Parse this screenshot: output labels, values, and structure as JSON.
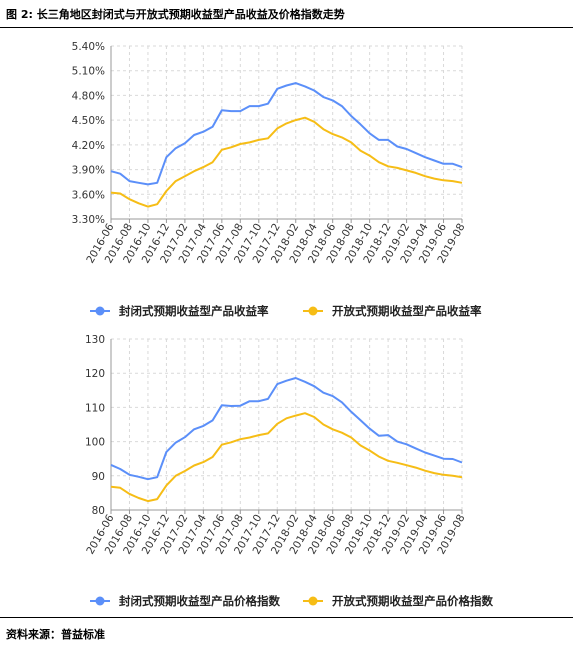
{
  "figure_title": "图 2: 长三角地区封闭式与开放式预期收益型产品收益及价格指数走势",
  "source_note": "资料来源：普益标准",
  "colors": {
    "closed": "#5B8FF9",
    "open": "#F6BD16",
    "grid": "#d9d9d9",
    "axis": "#999999"
  },
  "chart_data": [
    {
      "type": "line",
      "title": "",
      "xlabel": "",
      "ylabel": "",
      "ylim": [
        3.3,
        5.4
      ],
      "yticks": [
        "3.30%",
        "3.60%",
        "3.90%",
        "4.20%",
        "4.50%",
        "4.80%",
        "5.10%",
        "5.40%"
      ],
      "grid": "dashed",
      "legend_position": "bottom",
      "x": [
        "2016-06",
        "2016-07",
        "2016-08",
        "2016-09",
        "2016-10",
        "2016-11",
        "2016-12",
        "2017-01",
        "2017-02",
        "2017-03",
        "2017-04",
        "2017-05",
        "2017-06",
        "2017-07",
        "2017-08",
        "2017-09",
        "2017-10",
        "2017-11",
        "2017-12",
        "2018-01",
        "2018-02",
        "2018-03",
        "2018-04",
        "2018-05",
        "2018-06",
        "2018-07",
        "2018-08",
        "2018-09",
        "2018-10",
        "2018-11",
        "2018-12",
        "2019-01",
        "2019-02",
        "2019-03",
        "2019-04",
        "2019-05",
        "2019-06",
        "2019-07",
        "2019-08"
      ],
      "xticks": [
        "2016-06",
        "2016-08",
        "2016-10",
        "2016-12",
        "2017-02",
        "2017-04",
        "2017-06",
        "2017-08",
        "2017-10",
        "2017-12",
        "2018-02",
        "2018-04",
        "2018-06",
        "2018-08",
        "2018-10",
        "2018-12",
        "2019-02",
        "2019-04",
        "2019-06",
        "2019-08"
      ],
      "series": [
        {
          "name": "封闭式预期收益型产品收益率",
          "color": "#5B8FF9",
          "values": [
            3.88,
            3.85,
            3.76,
            3.74,
            3.72,
            3.74,
            4.05,
            4.16,
            4.22,
            4.32,
            4.36,
            4.42,
            4.62,
            4.61,
            4.61,
            4.67,
            4.67,
            4.7,
            4.88,
            4.92,
            4.95,
            4.91,
            4.86,
            4.78,
            4.74,
            4.67,
            4.55,
            4.45,
            4.34,
            4.26,
            4.26,
            4.18,
            4.15,
            4.1,
            4.05,
            4.01,
            3.97,
            3.97,
            3.93
          ]
        },
        {
          "name": "开放式预期收益型产品收益率",
          "color": "#F6BD16",
          "values": [
            3.62,
            3.61,
            3.54,
            3.49,
            3.45,
            3.48,
            3.64,
            3.76,
            3.82,
            3.88,
            3.93,
            3.99,
            4.14,
            4.17,
            4.21,
            4.23,
            4.26,
            4.28,
            4.4,
            4.46,
            4.5,
            4.53,
            4.48,
            4.39,
            4.33,
            4.29,
            4.23,
            4.13,
            4.07,
            3.99,
            3.94,
            3.92,
            3.89,
            3.86,
            3.82,
            3.79,
            3.77,
            3.76,
            3.74
          ]
        }
      ]
    },
    {
      "type": "line",
      "title": "",
      "xlabel": "",
      "ylabel": "",
      "ylim": [
        80,
        130
      ],
      "yticks": [
        "80",
        "90",
        "100",
        "110",
        "120",
        "130"
      ],
      "grid": "dashed",
      "legend_position": "bottom",
      "x": [
        "2016-06",
        "2016-07",
        "2016-08",
        "2016-09",
        "2016-10",
        "2016-11",
        "2016-12",
        "2017-01",
        "2017-02",
        "2017-03",
        "2017-04",
        "2017-05",
        "2017-06",
        "2017-07",
        "2017-08",
        "2017-09",
        "2017-10",
        "2017-11",
        "2017-12",
        "2018-01",
        "2018-02",
        "2018-03",
        "2018-04",
        "2018-05",
        "2018-06",
        "2018-07",
        "2018-08",
        "2018-09",
        "2018-10",
        "2018-11",
        "2018-12",
        "2019-01",
        "2019-02",
        "2019-03",
        "2019-04",
        "2019-05",
        "2019-06",
        "2019-07",
        "2019-08"
      ],
      "xticks": [
        "2016-06",
        "2016-08",
        "2016-10",
        "2016-12",
        "2017-02",
        "2017-04",
        "2017-06",
        "2017-08",
        "2017-10",
        "2017-12",
        "2018-02",
        "2018-04",
        "2018-06",
        "2018-08",
        "2018-10",
        "2018-12",
        "2019-02",
        "2019-04",
        "2019-06",
        "2019-08"
      ],
      "series": [
        {
          "name": "封闭式预期收益型产品价格指数",
          "color": "#5B8FF9",
          "values": [
            93.2,
            92.0,
            90.3,
            89.7,
            89.0,
            89.6,
            97.0,
            99.7,
            101.3,
            103.6,
            104.6,
            106.2,
            110.6,
            110.4,
            110.5,
            111.8,
            111.8,
            112.5,
            116.8,
            117.8,
            118.6,
            117.5,
            116.2,
            114.3,
            113.3,
            111.5,
            108.7,
            106.3,
            103.8,
            101.7,
            101.9,
            100.0,
            99.2,
            98.0,
            96.8,
            95.9,
            95.0,
            94.9,
            93.9
          ]
        },
        {
          "name": "开放式预期收益型产品价格指数",
          "color": "#F6BD16",
          "values": [
            86.8,
            86.5,
            84.7,
            83.5,
            82.6,
            83.2,
            87.2,
            90.0,
            91.4,
            93.0,
            94.0,
            95.5,
            99.1,
            99.8,
            100.7,
            101.2,
            101.9,
            102.4,
            105.2,
            106.8,
            107.6,
            108.3,
            107.2,
            105.0,
            103.6,
            102.6,
            101.2,
            98.9,
            97.4,
            95.6,
            94.4,
            93.8,
            93.1,
            92.4,
            91.5,
            90.8,
            90.3,
            90.0,
            89.6
          ]
        }
      ]
    }
  ]
}
